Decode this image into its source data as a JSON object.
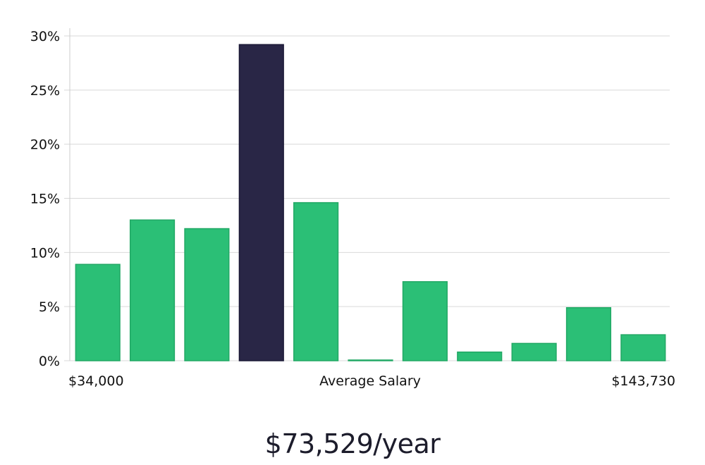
{
  "chart_data": {
    "type": "bar",
    "title": "",
    "xlabel": "Average Salary",
    "ylabel": "",
    "x_range_labels": {
      "min": "$34,000",
      "max": "$143,730"
    },
    "values": [
      8.9,
      13.0,
      12.2,
      29.2,
      14.6,
      0.05,
      7.3,
      0.8,
      1.6,
      4.9,
      2.4
    ],
    "highlight_index": 3,
    "ylim": [
      0,
      30
    ],
    "yticks": [
      0,
      5,
      10,
      15,
      20,
      25,
      30
    ],
    "ytick_labels": [
      "0%",
      "5%",
      "10%",
      "15%",
      "20%",
      "25%",
      "30%"
    ],
    "colors": {
      "bar": "#2bbf76",
      "bar_stroke": "#22a865",
      "highlight": "#292646",
      "highlight_stroke": "#1a1836",
      "grid": "#d9d9d9"
    },
    "grid": true,
    "legend": "none"
  },
  "summary": {
    "salary_text": "$73,529/year"
  }
}
